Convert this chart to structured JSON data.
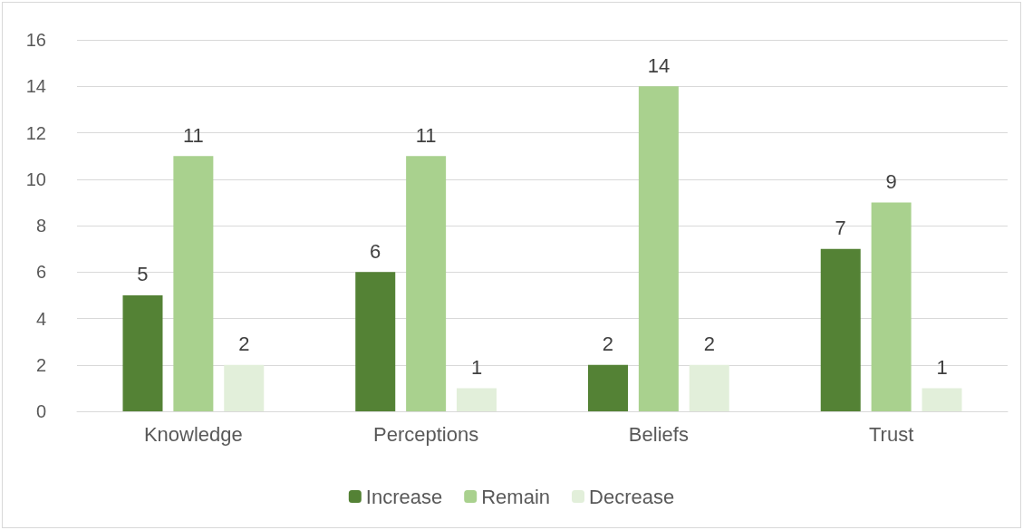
{
  "chart_data": {
    "type": "bar",
    "categories": [
      "Knowledge",
      "Perceptions",
      "Beliefs",
      "Trust"
    ],
    "series": [
      {
        "name": "Increase",
        "color": "#548235",
        "values": [
          5,
          6,
          2,
          7
        ]
      },
      {
        "name": "Remain",
        "color": "#a9d18e",
        "values": [
          11,
          11,
          14,
          9
        ]
      },
      {
        "name": "Decrease",
        "color": "#e2efda",
        "values": [
          2,
          1,
          2,
          1
        ]
      }
    ],
    "ylim": [
      0,
      16
    ],
    "yticks": [
      0,
      2,
      4,
      6,
      8,
      10,
      12,
      14,
      16
    ],
    "grid": "y",
    "legend": "bottom",
    "data_labels": true
  }
}
